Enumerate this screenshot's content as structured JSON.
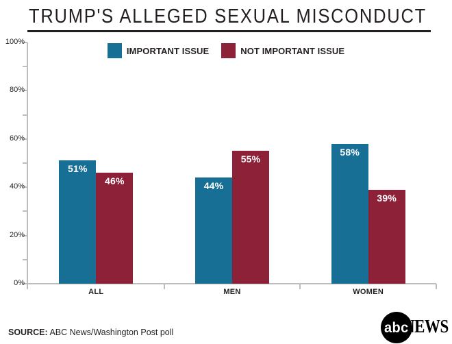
{
  "title": "TRUMP'S ALLEGED SEXUAL MISCONDUCT",
  "colors": {
    "teal": "#176F96",
    "maroon": "#8C2138",
    "axis": "#BDBDBD",
    "ink": "#231F20",
    "bar_label": "#FFFFFF"
  },
  "chart_data": {
    "type": "bar",
    "categories": [
      "ALL",
      "MEN",
      "WOMEN"
    ],
    "series": [
      {
        "name": "IMPORTANT ISSUE",
        "color": "#176F96",
        "values": [
          51,
          44,
          58
        ]
      },
      {
        "name": "NOT IMPORTANT ISSUE",
        "color": "#8C2138",
        "values": [
          46,
          55,
          39
        ]
      }
    ],
    "title": "TRUMP'S ALLEGED SEXUAL MISCONDUCT",
    "xlabel": "",
    "ylabel": "",
    "ylim": [
      0,
      100
    ],
    "ytick_major": [
      0,
      20,
      40,
      60,
      80,
      100
    ],
    "ytick_minor_step": 10,
    "ytick_suffix": "%",
    "value_label_suffix": "%",
    "grid": false,
    "legend_position": "top-center"
  },
  "footer": {
    "source_label": "SOURCE:",
    "source_text": " ABC News/Washington Post poll"
  },
  "logo": {
    "circle_text": "abc",
    "news_text": "NEWS"
  }
}
